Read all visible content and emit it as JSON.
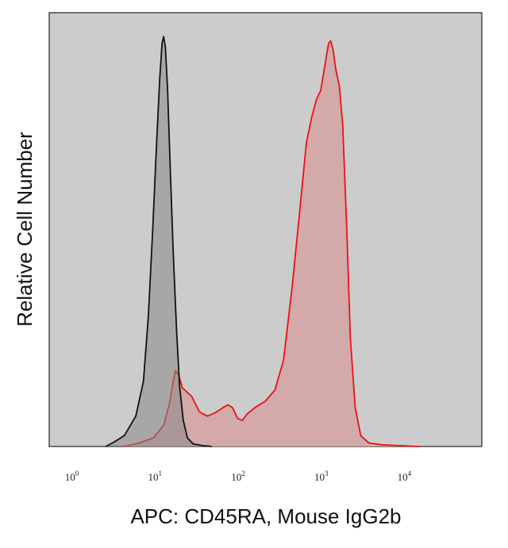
{
  "chart_data": {
    "type": "area",
    "title": "",
    "xlabel": "APC: CD45RA, Mouse IgG2b",
    "ylabel": "Relative Cell Number",
    "x_scale": "log",
    "xlim": [
      0.5,
      80000
    ],
    "ylim": [
      0,
      1.0
    ],
    "x_ticks": [
      {
        "base": "10",
        "exp": "0",
        "value": 1
      },
      {
        "base": "10",
        "exp": "1",
        "value": 10
      },
      {
        "base": "10",
        "exp": "2",
        "value": 100
      },
      {
        "base": "10",
        "exp": "3",
        "value": 1000
      },
      {
        "base": "10",
        "exp": "4",
        "value": 10000
      }
    ],
    "grid": false,
    "legend": "none",
    "background_color": "#cccccc",
    "series": [
      {
        "color": "#ee1111",
        "fill": "#d4a5a5",
        "points": [
          [
            4.0,
            0.0
          ],
          [
            6.0,
            0.008
          ],
          [
            9.0,
            0.02
          ],
          [
            12.0,
            0.05
          ],
          [
            14.0,
            0.1
          ],
          [
            15.5,
            0.15
          ],
          [
            16.5,
            0.175
          ],
          [
            18.0,
            0.165
          ],
          [
            20.0,
            0.135
          ],
          [
            22.0,
            0.128
          ],
          [
            26.0,
            0.115
          ],
          [
            32.0,
            0.08
          ],
          [
            40.0,
            0.07
          ],
          [
            50.0,
            0.078
          ],
          [
            60.0,
            0.088
          ],
          [
            70.0,
            0.096
          ],
          [
            80.0,
            0.09
          ],
          [
            92.0,
            0.065
          ],
          [
            105.0,
            0.06
          ],
          [
            120.0,
            0.075
          ],
          [
            150.0,
            0.09
          ],
          [
            200.0,
            0.105
          ],
          [
            260.0,
            0.13
          ],
          [
            330.0,
            0.2
          ],
          [
            420.0,
            0.37
          ],
          [
            520.0,
            0.55
          ],
          [
            620.0,
            0.7
          ],
          [
            720.0,
            0.76
          ],
          [
            820.0,
            0.8
          ],
          [
            920.0,
            0.82
          ],
          [
            1000.0,
            0.86
          ],
          [
            1080.0,
            0.9
          ],
          [
            1150.0,
            0.93
          ],
          [
            1220.0,
            0.935
          ],
          [
            1300.0,
            0.915
          ],
          [
            1400.0,
            0.87
          ],
          [
            1550.0,
            0.83
          ],
          [
            1700.0,
            0.74
          ],
          [
            1900.0,
            0.5
          ],
          [
            2100.0,
            0.25
          ],
          [
            2400.0,
            0.09
          ],
          [
            2800.0,
            0.025
          ],
          [
            3500.0,
            0.008
          ],
          [
            5000.0,
            0.004
          ],
          [
            8000.0,
            0.002
          ],
          [
            14000.0,
            0.0
          ]
        ]
      },
      {
        "color": "#111111",
        "fill": "#888888",
        "points": [
          [
            2.4,
            0.0
          ],
          [
            3.0,
            0.01
          ],
          [
            4.0,
            0.025
          ],
          [
            5.5,
            0.07
          ],
          [
            6.8,
            0.15
          ],
          [
            7.8,
            0.3
          ],
          [
            8.8,
            0.5
          ],
          [
            9.8,
            0.7
          ],
          [
            10.7,
            0.85
          ],
          [
            11.4,
            0.93
          ],
          [
            11.9,
            0.945
          ],
          [
            12.5,
            0.92
          ],
          [
            13.3,
            0.82
          ],
          [
            14.3,
            0.64
          ],
          [
            15.5,
            0.45
          ],
          [
            17.0,
            0.27
          ],
          [
            18.5,
            0.14
          ],
          [
            20.5,
            0.06
          ],
          [
            23.0,
            0.02
          ],
          [
            27.0,
            0.006
          ],
          [
            35.0,
            0.002
          ],
          [
            45.0,
            0.0
          ]
        ]
      }
    ]
  }
}
